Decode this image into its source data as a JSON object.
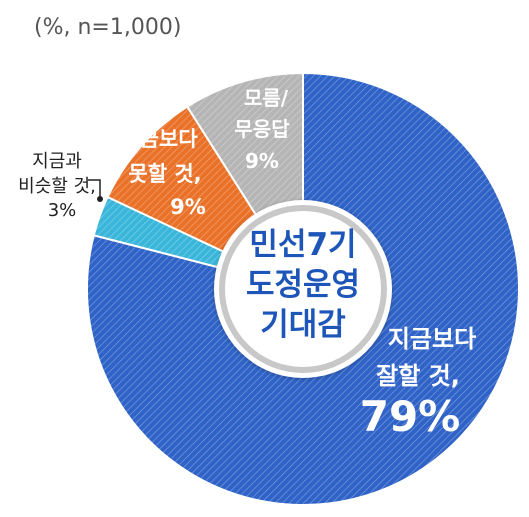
{
  "chart_data": {
    "type": "pie",
    "style": "donut",
    "note": "(%, n=1,000)",
    "center_label": [
      "민선7기",
      "도정운영",
      "기대감"
    ],
    "slices": [
      {
        "label_lines": [
          "지금보다",
          "잘할 것,"
        ],
        "value": 79,
        "value_text": "79%",
        "color": "#2f63c7",
        "hatch": true,
        "label_color": "#ffffff",
        "label_placement": "inside"
      },
      {
        "label_lines": [
          "지금과",
          "비슷할 것,"
        ],
        "value": 3,
        "value_text": "3%",
        "color": "#39b6da",
        "hatch": true,
        "label_color": "#222222",
        "label_placement": "outside-left"
      },
      {
        "label_lines": [
          "지금보다",
          "못할 것,"
        ],
        "value": 9,
        "value_text": "9%",
        "color": "#ea7128",
        "hatch": true,
        "label_color": "#ffffff",
        "label_placement": "inside"
      },
      {
        "label_lines": [
          "모름/",
          "무응답"
        ],
        "value": 9,
        "value_text": "9%",
        "color": "#b5b5b5",
        "hatch": true,
        "label_color": "#ffffff",
        "label_placement": "inside"
      }
    ],
    "start_angle_deg": 0,
    "direction": "clockwise"
  }
}
